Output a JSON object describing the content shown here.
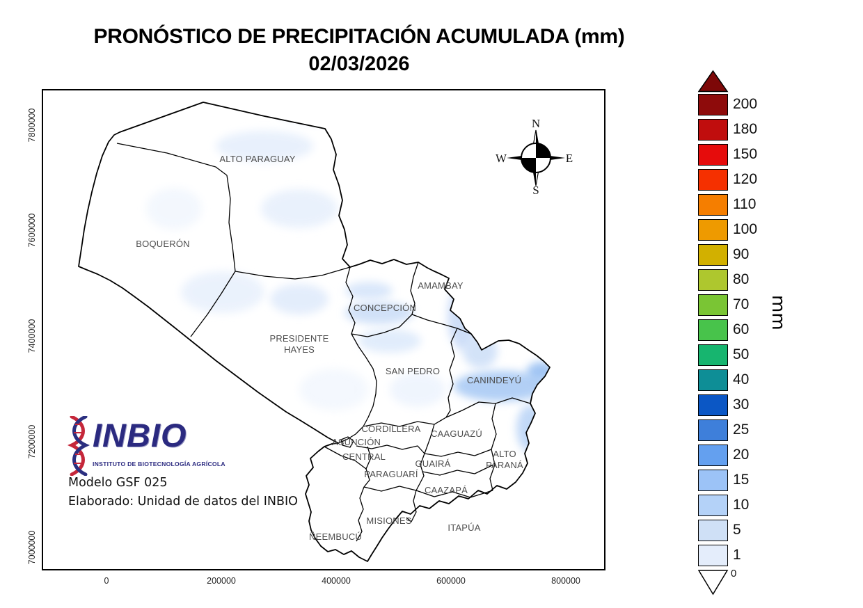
{
  "title": {
    "line1": "PRONÓSTICO DE PRECIPITACIÓN ACUMULADA (mm)",
    "line2": "02/03/2026"
  },
  "axes": {
    "x_ticks": [
      "0",
      "200000",
      "400000",
      "600000",
      "800000"
    ],
    "y_ticks": [
      "7000000",
      "7200000",
      "7400000",
      "7600000",
      "7800000"
    ]
  },
  "compass": {
    "n": "N",
    "e": "E",
    "s": "S",
    "w": "W"
  },
  "departments": [
    {
      "name": "ALTO PARAGUAY"
    },
    {
      "name": "BOQUERÓN"
    },
    {
      "name": "AMAMBAY"
    },
    {
      "name": "CONCEPCIÓN"
    },
    {
      "name": "PRESIDENTE\nHAYES"
    },
    {
      "name": "SAN PEDRO"
    },
    {
      "name": "CANINDEYÚ"
    },
    {
      "name": "CORDILLERA"
    },
    {
      "name": "CAAGUAZÚ"
    },
    {
      "name": "ASUNCIÓN"
    },
    {
      "name": "CENTRAL"
    },
    {
      "name": "ALTO\nPARANÁ"
    },
    {
      "name": "GUAIRÁ"
    },
    {
      "name": "PARAGUARÍ"
    },
    {
      "name": "CAAZAPÁ"
    },
    {
      "name": "MISIONES"
    },
    {
      "name": "ITAPÚA"
    },
    {
      "name": "ÑEEMBUCÚ"
    }
  ],
  "logo": {
    "brand": "INBIO",
    "subtitle": "INSTITUTO DE BIOTECNOLOGÍA AGRÍCOLA"
  },
  "notes": {
    "model": "Modelo GSF 025",
    "credit": "Elaborado: Unidad de datos del INBIO"
  },
  "colorbar": {
    "unit_label": "mm",
    "zero_label": "0",
    "levels": [
      "200",
      "180",
      "150",
      "120",
      "110",
      "100",
      "90",
      "80",
      "70",
      "60",
      "50",
      "40",
      "30",
      "25",
      "20",
      "15",
      "10",
      "5",
      "1"
    ],
    "colors": [
      "#8e0b0b",
      "#c00d0d",
      "#e60c0c",
      "#f53000",
      "#f57e00",
      "#ee9a00",
      "#d2b000",
      "#aec72e",
      "#7ac534",
      "#48c34b",
      "#17b56f",
      "#0e8e96",
      "#0b57c5",
      "#3e7fda",
      "#64a0ef",
      "#9cc3f7",
      "#b4d2f8",
      "#cfe0f6",
      "#e4edfb"
    ],
    "over_color": "#7d0808",
    "under_color": "#ffffff",
    "border_color": "#000000"
  },
  "map_colors": {
    "border": "#000000",
    "land": "#ffffff",
    "precip_light": "#e4edfb",
    "precip_medium": "#cadcf8",
    "precip_strong": "#9cc2f3"
  },
  "chart_data": {
    "type": "heatmap",
    "title": "PRONÓSTICO DE PRECIPITACIÓN ACUMULADA (mm) — 02/03/2026",
    "unit": "mm",
    "scale_levels": [
      0,
      1,
      5,
      10,
      15,
      20,
      25,
      30,
      40,
      50,
      60,
      70,
      80,
      90,
      100,
      110,
      120,
      150,
      180,
      200
    ],
    "x_axis_range": [
      0,
      800000
    ],
    "y_axis_range": [
      7000000,
      7800000
    ],
    "regions_precip_mm": [
      {
        "region": "CANINDEYÚ (franja centro-este)",
        "approx_mm": "10–15"
      },
      {
        "region": "CANINDEYÚ (extremo este)",
        "approx_mm": "15–20"
      },
      {
        "region": "AMAMBAY (borde este)",
        "approx_mm": "5–10"
      },
      {
        "region": "ALTO PARANÁ (norte)",
        "approx_mm": "5–10"
      },
      {
        "region": "CONCEPCIÓN",
        "approx_mm": "1–5"
      },
      {
        "region": "SAN PEDRO",
        "approx_mm": "1–5"
      },
      {
        "region": "ALTO PARAGUAY",
        "approx_mm": "0–1"
      },
      {
        "region": "BOQUERÓN",
        "approx_mm": "0–1"
      },
      {
        "region": "PRESIDENTE HAYES",
        "approx_mm": "0–1"
      }
    ]
  }
}
